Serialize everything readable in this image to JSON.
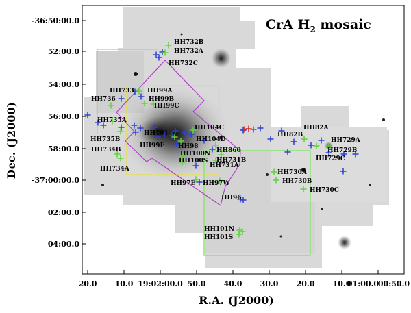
{
  "figure": {
    "title_main": "CrA H",
    "title_sub": "2",
    "title_tail": " mosaic",
    "xlabel": "R.A. (J2000)",
    "ylabel": "Dec. (J2000)",
    "dec_ticks": [
      "-36:50:00.0",
      "52:00.0",
      "54:00.0",
      "56:00.0",
      "58:00.0",
      "-37:00:00.0",
      "02:00.0",
      "04:00.0"
    ],
    "ra_ticks": [
      "20.0",
      "10.0",
      "19:02:00.0",
      "50.0",
      "40.0",
      "30.0",
      "20.0",
      "10.0",
      "01:00.0",
      "00:50.0"
    ]
  },
  "colors": {
    "blue_marker": "#2c3fd8",
    "green_marker": "#5fd23a",
    "red_marker": "#e02020",
    "magenta_box": "#b040c8",
    "yellow_box": "#e8e040",
    "green_box": "#8ae06a",
    "cyan_box": "#7fd8d8"
  },
  "labels": [
    {
      "text": "HH732B"
    },
    {
      "text": "HH732A"
    },
    {
      "text": "HH732C"
    },
    {
      "text": "HH733"
    },
    {
      "text": "HH99A"
    },
    {
      "text": "HH99B"
    },
    {
      "text": "HH99C"
    },
    {
      "text": "HH736"
    },
    {
      "text": "HH735A"
    },
    {
      "text": "HH104C"
    },
    {
      "text": "HH101"
    },
    {
      "text": "HH104D"
    },
    {
      "text": "HH735B"
    },
    {
      "text": "HH99F"
    },
    {
      "text": "HH98"
    },
    {
      "text": "HH100N"
    },
    {
      "text": "HH734B"
    },
    {
      "text": "HH860"
    },
    {
      "text": "HH731B"
    },
    {
      "text": "HH731A"
    },
    {
      "text": "HH100S"
    },
    {
      "text": "HH734A"
    },
    {
      "text": "HH97E"
    },
    {
      "text": "HH97W"
    },
    {
      "text": "HH96"
    },
    {
      "text": "HH82A"
    },
    {
      "text": "HH82B"
    },
    {
      "text": "HH729A"
    },
    {
      "text": "HH729B"
    },
    {
      "text": "HH729C"
    },
    {
      "text": "HH730A"
    },
    {
      "text": "HH730B"
    },
    {
      "text": "HH730C"
    },
    {
      "text": "HH101N"
    },
    {
      "text": "HH101S"
    }
  ]
}
